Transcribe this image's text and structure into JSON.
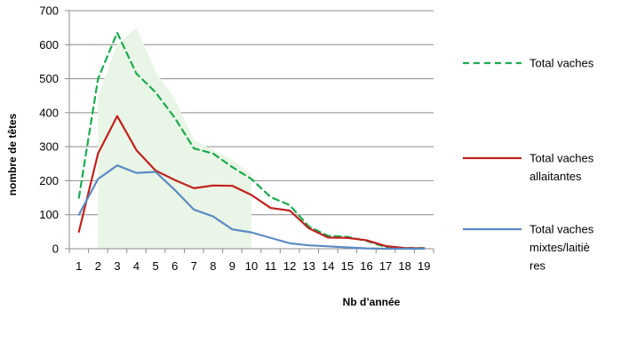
{
  "chart_data": {
    "type": "line",
    "title": "",
    "xlabel": "Nb d’année",
    "ylabel": "nombre de têtes",
    "x": [
      1,
      2,
      3,
      4,
      5,
      6,
      7,
      8,
      9,
      10,
      11,
      12,
      13,
      14,
      15,
      16,
      17,
      18,
      19
    ],
    "ylim": [
      0,
      700
    ],
    "yticks": [
      0,
      100,
      200,
      300,
      400,
      500,
      600,
      700
    ],
    "grid": "horizontal",
    "legend_position": "right",
    "series": [
      {
        "name": "Total vaches",
        "style": "dashed",
        "color": "#1aab50",
        "values": [
          150,
          500,
          635,
          515,
          460,
          385,
          295,
          280,
          240,
          205,
          152,
          128,
          65,
          38,
          35,
          23,
          5,
          2,
          2
        ]
      },
      {
        "name": "Total vaches allaitantes",
        "style": "solid",
        "color": "#c0211c",
        "values": [
          50,
          280,
          390,
          290,
          230,
          202,
          178,
          186,
          185,
          158,
          120,
          112,
          60,
          33,
          32,
          25,
          8,
          2,
          1
        ]
      },
      {
        "name": "Total vaches mixtes/laitières",
        "style": "solid",
        "color": "#5b8ac3",
        "values": [
          100,
          205,
          245,
          223,
          226,
          173,
          115,
          95,
          57,
          48,
          32,
          16,
          10,
          7,
          4,
          1,
          0,
          0,
          0
        ]
      }
    ],
    "background_area": {
      "color": "#e9f5e6",
      "x": [
        2,
        3,
        4,
        5,
        6,
        7,
        8,
        9,
        10
      ],
      "values": [
        450,
        600,
        650,
        520,
        440,
        320,
        290,
        260,
        220
      ]
    }
  },
  "legend": {
    "entries": [
      {
        "lines": [
          "Total vaches"
        ]
      },
      {
        "lines": [
          "Total vaches",
          "allaitantes"
        ]
      },
      {
        "lines": [
          "Total vaches",
          "mixtes/laitiè",
          "res"
        ]
      }
    ]
  }
}
